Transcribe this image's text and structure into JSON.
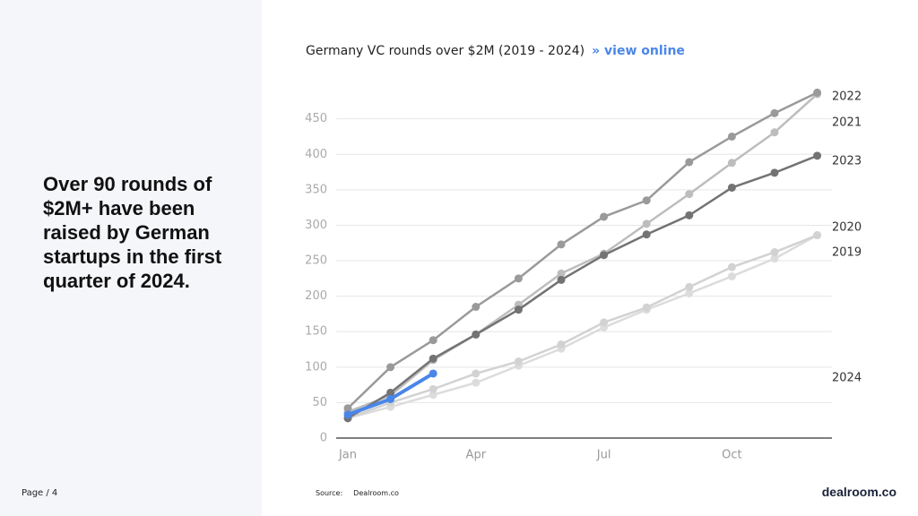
{
  "headline": "Over 90 rounds of $2M+ have been raised by German startups in the first quarter of 2024.",
  "page": "Page / 4",
  "source_label": "Source:",
  "source": "Dealroom.co",
  "logo": "dealroom.co",
  "chart_data": {
    "type": "line",
    "title": "Germany VC rounds over $2M (2019 - 2024)",
    "link": "» view online",
    "categories": [
      "Jan",
      null,
      null,
      "Apr",
      null,
      null,
      "Jul",
      null,
      null,
      "Oct",
      null,
      null
    ],
    "ylim": [
      0,
      490
    ],
    "yticks": [
      0,
      50,
      100,
      150,
      200,
      250,
      300,
      350,
      400,
      450
    ],
    "grid": true,
    "series": [
      {
        "name": "2019",
        "color": "#dcdcdc",
        "values": [
          28,
          44,
          61,
          78,
          102,
          126,
          156,
          181,
          204,
          228,
          253,
          286
        ]
      },
      {
        "name": "2020",
        "color": "#d2d2d2",
        "values": [
          28,
          50,
          69,
          91,
          108,
          132,
          163,
          184,
          213,
          241,
          262,
          286
        ]
      },
      {
        "name": "2021",
        "color": "#bdbdbd",
        "values": [
          37,
          60,
          110,
          146,
          188,
          232,
          260,
          302,
          344,
          388,
          431,
          485
        ]
      },
      {
        "name": "2022",
        "color": "#9a9a9a",
        "values": [
          42,
          100,
          138,
          185,
          225,
          273,
          312,
          335,
          389,
          425,
          458,
          487
        ]
      },
      {
        "name": "2023",
        "color": "#737373",
        "values": [
          28,
          64,
          112,
          146,
          181,
          223,
          258,
          287,
          314,
          353,
          374,
          398
        ]
      },
      {
        "name": "2024",
        "color": "#4a86e8",
        "values": [
          33,
          55,
          91,
          null,
          null,
          null,
          null,
          null,
          null,
          null,
          null,
          null
        ]
      }
    ]
  }
}
